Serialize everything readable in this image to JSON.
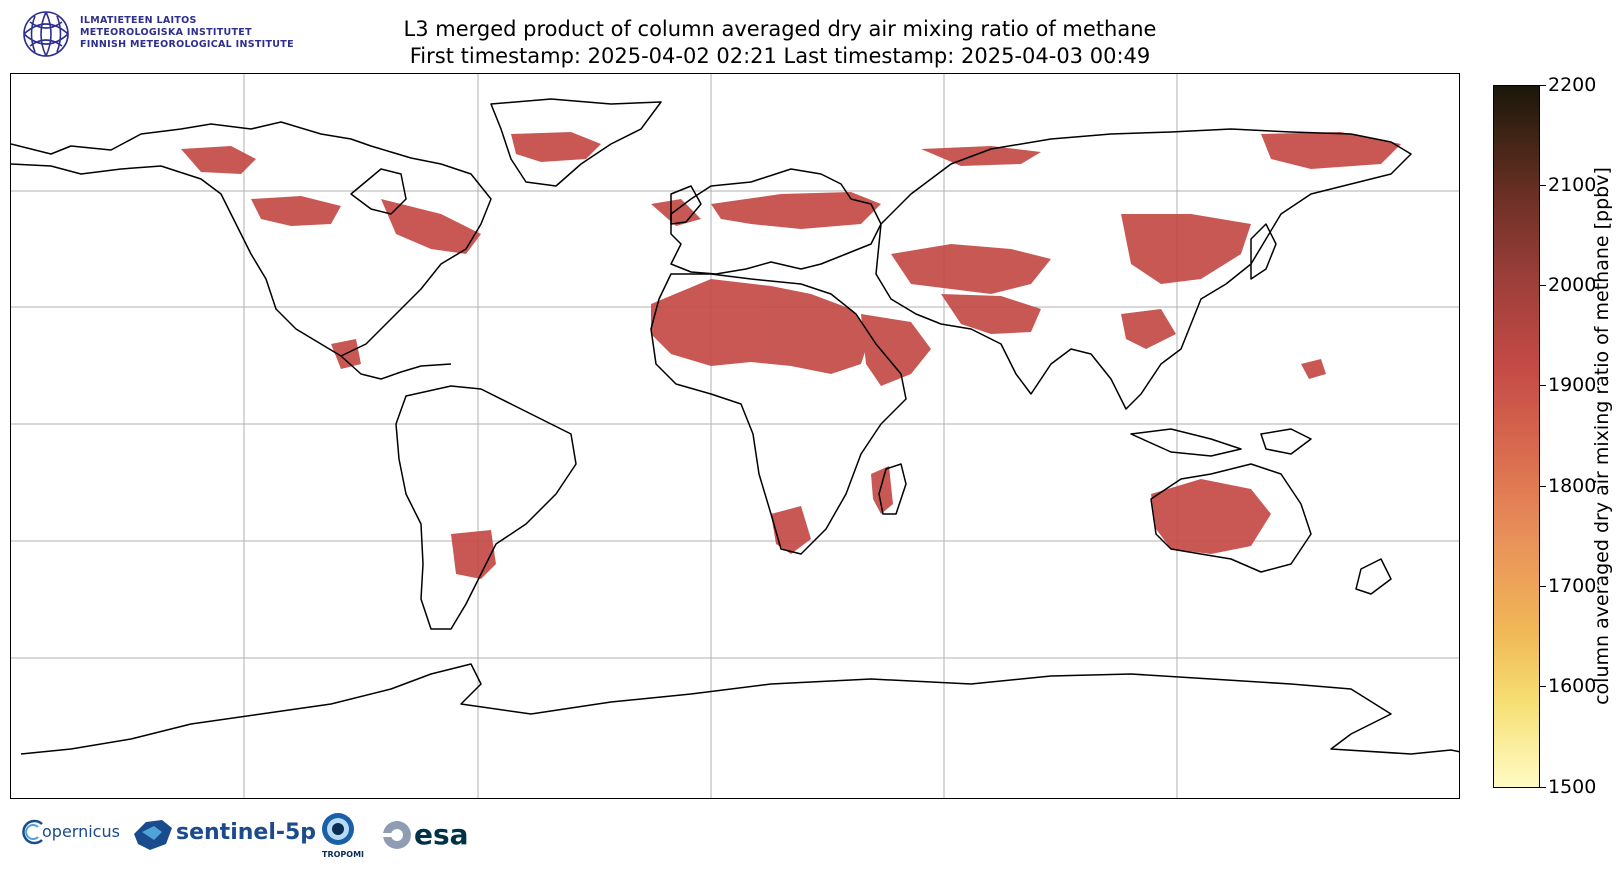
{
  "title": {
    "line1": "L3 merged product of column averaged dry air mixing ratio of methane",
    "line2": "First timestamp: 2025-04-02 02:21   Last timestamp: 2025-04-03 00:49"
  },
  "header_logo": {
    "line1": "ILMATIETEEN LAITOS",
    "line2": "METEOROLOGISKA INSTITUTET",
    "line3": "FINNISH METEOROLOGICAL INSTITUTE",
    "color": "#2d2f8f"
  },
  "colorbar": {
    "label": "column averaged dry air mixing ratio of methane [ppbv]",
    "ticks": [
      "2200",
      "2100",
      "2000",
      "1900",
      "1800",
      "1700",
      "1600",
      "1500"
    ],
    "min": 1500,
    "max": 2200
  },
  "map": {
    "projection": "PlateCarree",
    "gridlines": true,
    "coastline_color": "#000000",
    "data_color": "#c44a46"
  },
  "footer_logos": {
    "copernicus": "opernicus",
    "sentinel": "sentinel-5p",
    "tropomi": "TROPOMI",
    "esa": "esa"
  }
}
